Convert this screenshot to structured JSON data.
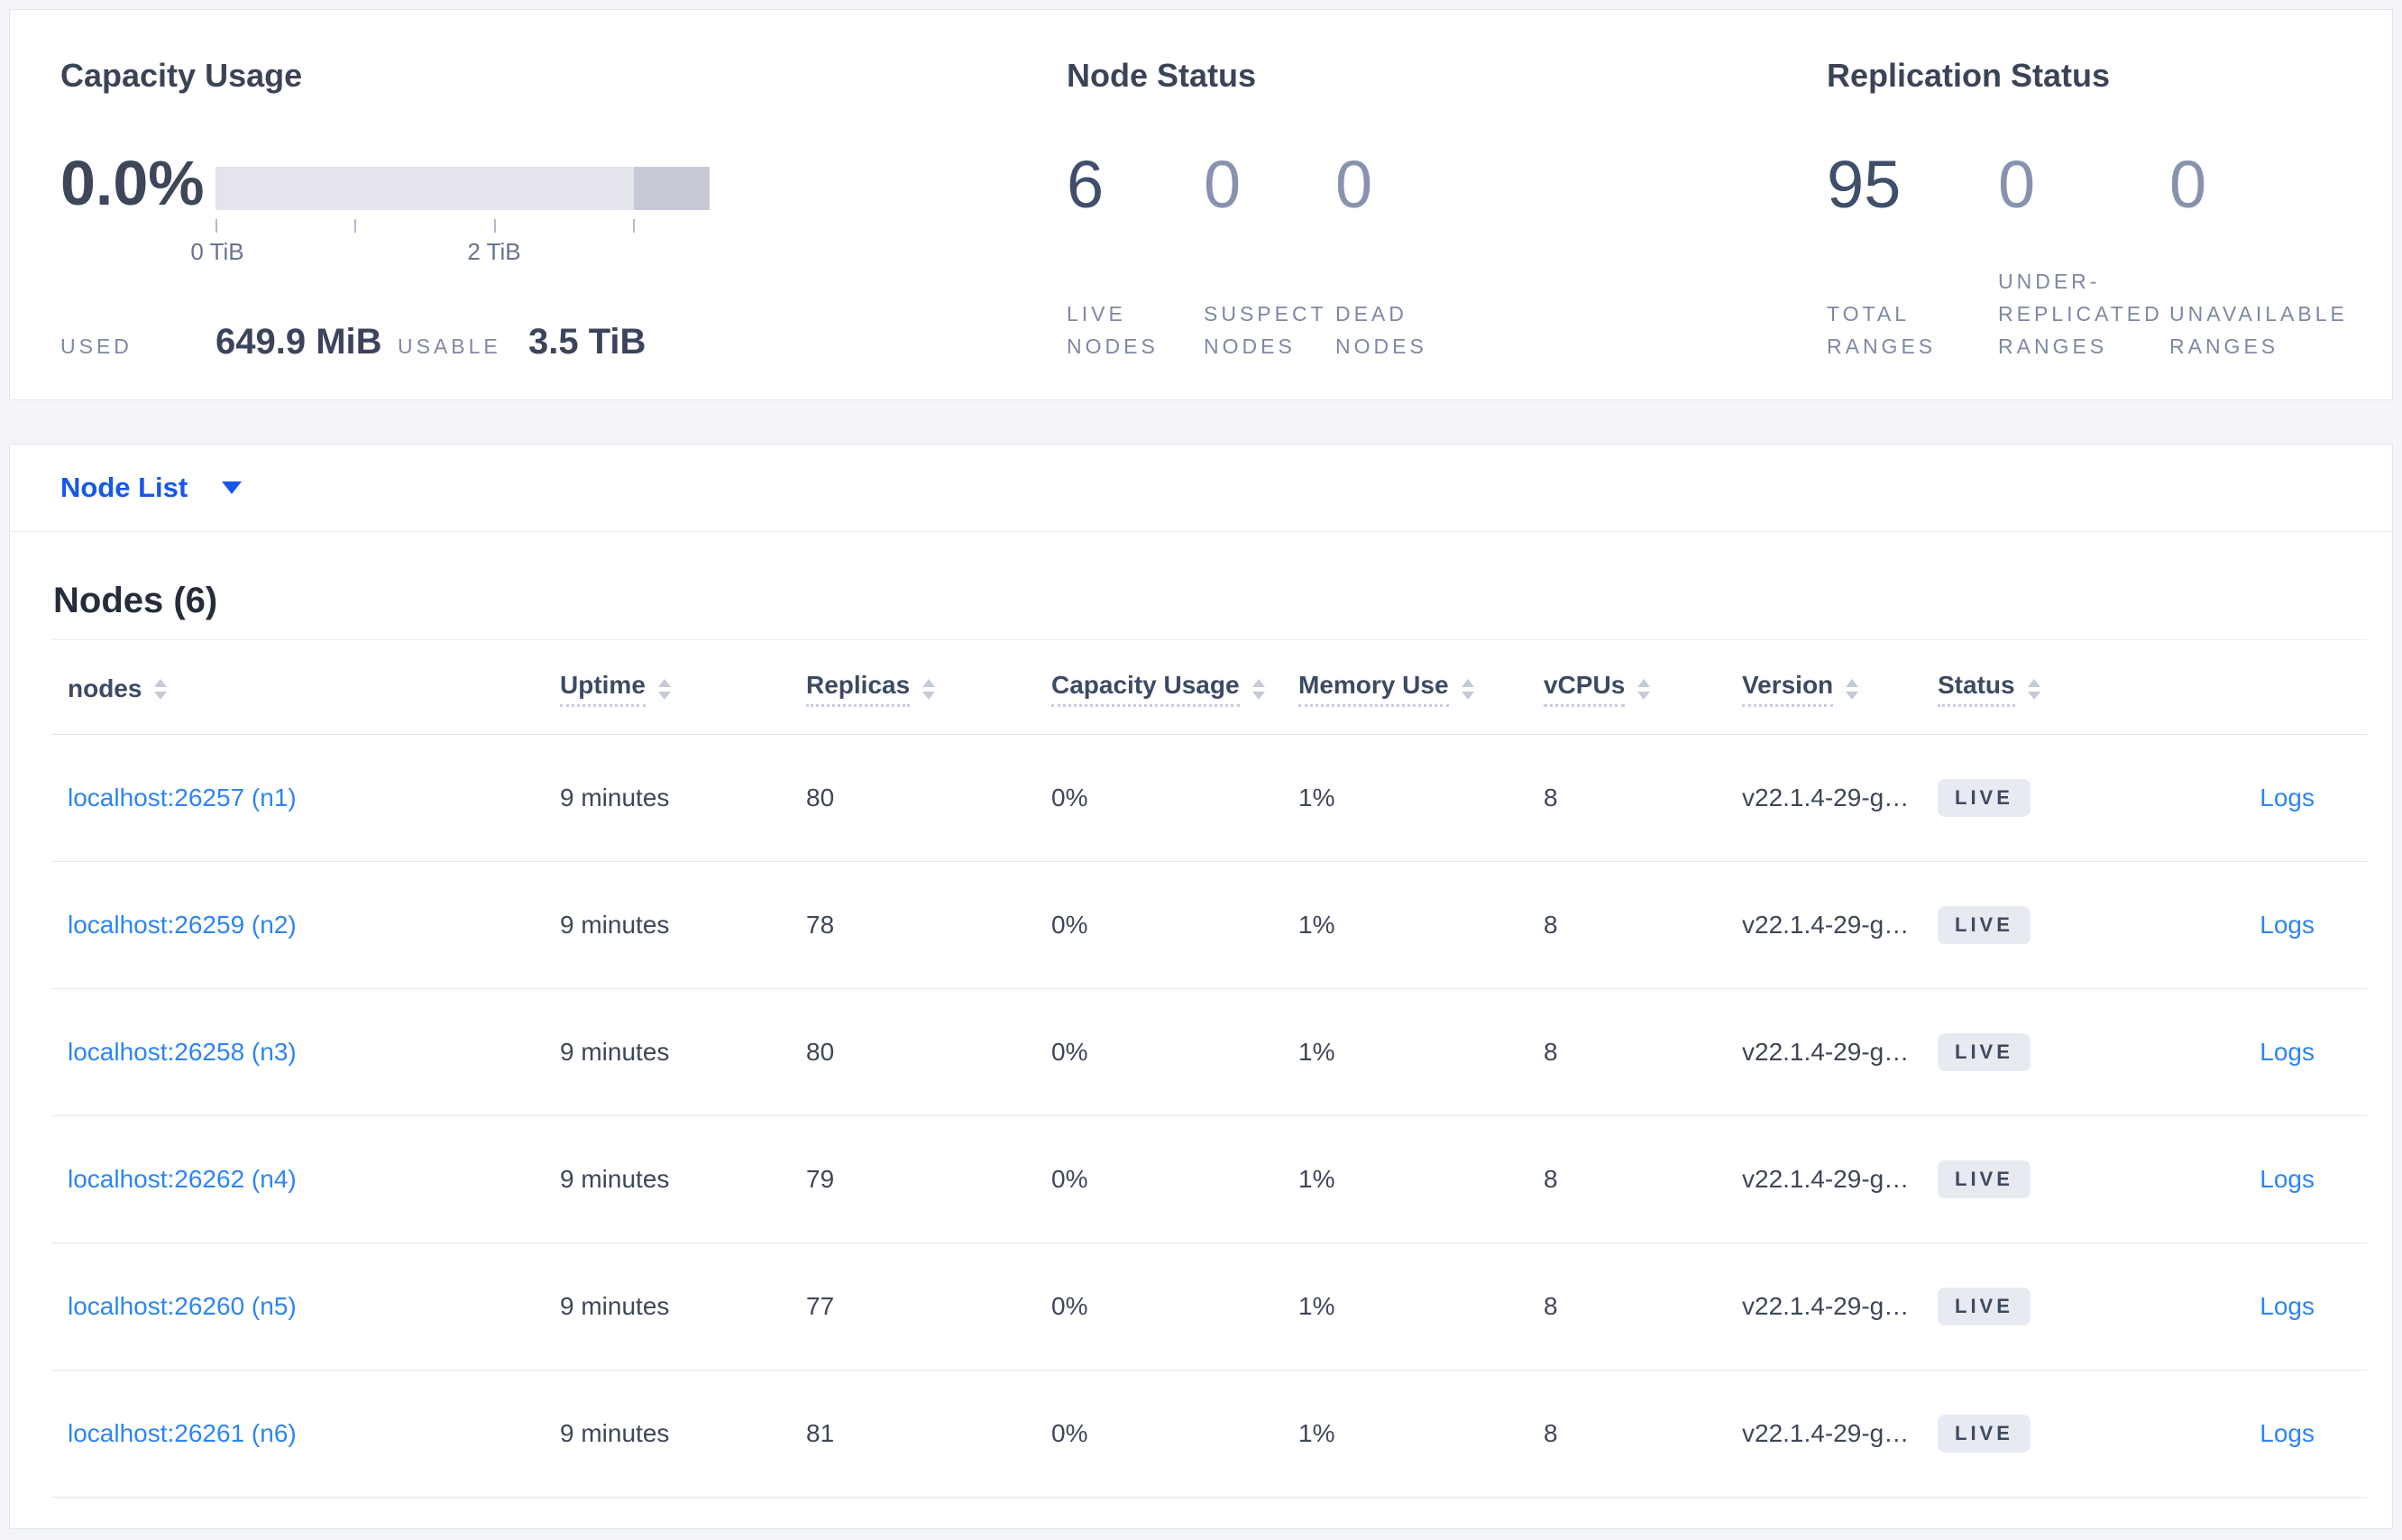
{
  "colors": {
    "page_background": "#f4f5f9",
    "selector_blue": "#1557e8",
    "link_blue": "#2d85f3",
    "live_badge_background": "#e7eaf1",
    "bar_light": "#e3e4ec",
    "bar_dark": "#c7cad6"
  },
  "summary": {
    "capacity": {
      "title": "Capacity Usage",
      "percent": "0.0%",
      "tick_labels": [
        "0 TiB",
        "2 TiB"
      ],
      "used_label": "USED",
      "used_value": "649.9 MiB",
      "usable_label": "USABLE",
      "usable_value": "3.5 TiB"
    },
    "node_status": {
      "title": "Node Status",
      "stats": [
        {
          "value": "6",
          "label": "LIVE\nNODES"
        },
        {
          "value": "0",
          "label": "SUSPECT\nNODES"
        },
        {
          "value": "0",
          "label": "DEAD\nNODES"
        }
      ]
    },
    "replication": {
      "title": "Replication Status",
      "stats": [
        {
          "value": "95",
          "label": "TOTAL\nRANGES"
        },
        {
          "value": "0",
          "label": "UNDER-\nREPLICATED\nRANGES"
        },
        {
          "value": "0",
          "label": "UNAVAILABLE\nRANGES"
        }
      ]
    }
  },
  "selector": {
    "label": "Node List"
  },
  "table": {
    "heading": "Nodes (6)",
    "columns": [
      "nodes",
      "Uptime",
      "Replicas",
      "Capacity Usage",
      "Memory Use",
      "vCPUs",
      "Version",
      "Status"
    ],
    "rows": [
      {
        "node": "localhost:26257 (n1)",
        "uptime": "9 minutes",
        "replicas": "80",
        "capacity": "0%",
        "memory": "1%",
        "vcpus": "8",
        "version": "v22.1.4-29-g…",
        "status": "LIVE",
        "logs": "Logs"
      },
      {
        "node": "localhost:26259 (n2)",
        "uptime": "9 minutes",
        "replicas": "78",
        "capacity": "0%",
        "memory": "1%",
        "vcpus": "8",
        "version": "v22.1.4-29-g…",
        "status": "LIVE",
        "logs": "Logs"
      },
      {
        "node": "localhost:26258 (n3)",
        "uptime": "9 minutes",
        "replicas": "80",
        "capacity": "0%",
        "memory": "1%",
        "vcpus": "8",
        "version": "v22.1.4-29-g…",
        "status": "LIVE",
        "logs": "Logs"
      },
      {
        "node": "localhost:26262 (n4)",
        "uptime": "9 minutes",
        "replicas": "79",
        "capacity": "0%",
        "memory": "1%",
        "vcpus": "8",
        "version": "v22.1.4-29-g…",
        "status": "LIVE",
        "logs": "Logs"
      },
      {
        "node": "localhost:26260 (n5)",
        "uptime": "9 minutes",
        "replicas": "77",
        "capacity": "0%",
        "memory": "1%",
        "vcpus": "8",
        "version": "v22.1.4-29-g…",
        "status": "LIVE",
        "logs": "Logs"
      },
      {
        "node": "localhost:26261 (n6)",
        "uptime": "9 minutes",
        "replicas": "81",
        "capacity": "0%",
        "memory": "1%",
        "vcpus": "8",
        "version": "v22.1.4-29-g…",
        "status": "LIVE",
        "logs": "Logs"
      }
    ]
  }
}
